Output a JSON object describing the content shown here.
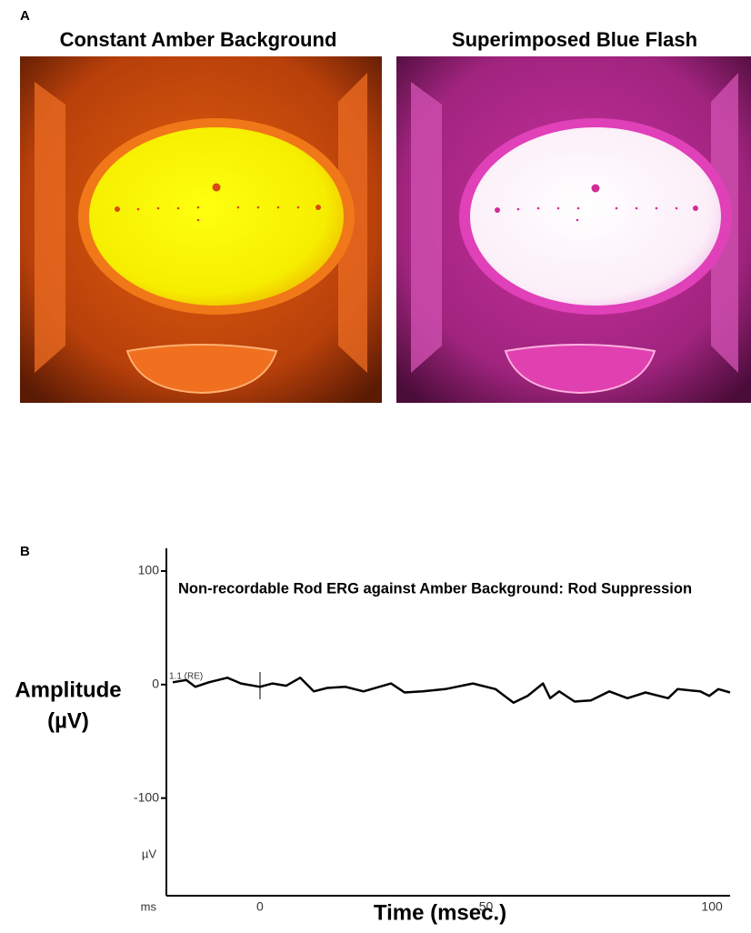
{
  "panel_a": {
    "label": "A",
    "images": [
      {
        "title": "Constant Amber Background"
      },
      {
        "title": "Superimposed Blue Flash"
      }
    ]
  },
  "panel_b": {
    "label": "B"
  },
  "chart_data": {
    "type": "line",
    "annotation": "Non-recordable Rod ERG against Amber Background: Rod Suppression",
    "trace_label": "1.1 (RE)",
    "x_label": "Time (msec.)",
    "y_label": [
      "Amplitude",
      "(µV)"
    ],
    "x_unit": "ms",
    "y_unit": "µV",
    "xlim": [
      -20.7,
      104
    ],
    "xticks": [
      0,
      50,
      100
    ],
    "ylim": [
      -186,
      120
    ],
    "yticks": [
      100,
      0,
      -100
    ],
    "grid": false,
    "x": [
      -19.3,
      -16.3,
      -14.3,
      -11.3,
      -7.2,
      -4.2,
      0,
      2.8,
      5.8,
      8.9,
      11.9,
      14.9,
      18.9,
      22.9,
      29,
      32,
      36,
      41,
      47.1,
      52.1,
      56.1,
      59.2,
      62.6,
      64.2,
      66.2,
      69.6,
      73.2,
      77.3,
      81.3,
      85.3,
      90.3,
      92.4,
      97.4,
      99.4,
      101.4,
      104
    ],
    "series": [
      {
        "color": "#000000",
        "values": [
          2,
          4,
          -2,
          2,
          6,
          1,
          -2,
          1,
          -1,
          6,
          -6,
          -3,
          -2,
          -6,
          1,
          -7,
          -6,
          -4,
          1,
          -4,
          -16,
          -10,
          1,
          -12,
          -6,
          -15,
          -14,
          -6,
          -12,
          -7,
          -12,
          -4,
          -6,
          -10,
          -4,
          -7
        ]
      }
    ]
  }
}
